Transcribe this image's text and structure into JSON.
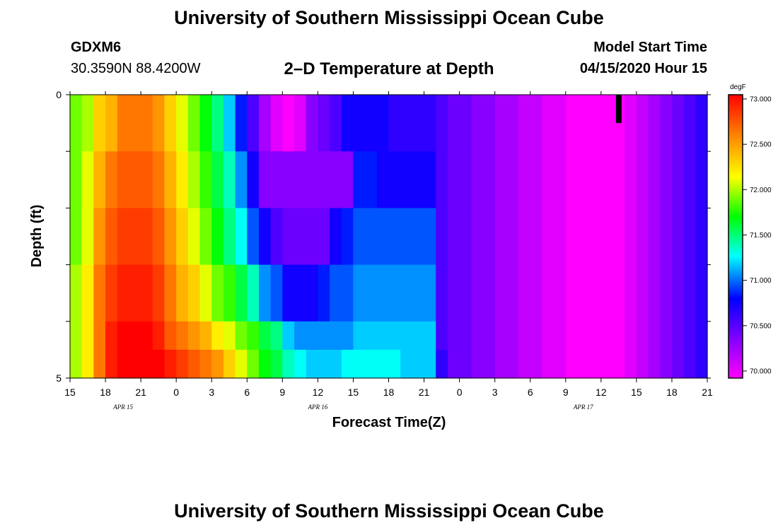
{
  "header": {
    "title": "University of Southern Mississippi Ocean Cube",
    "station_id": "GDXM6",
    "coordinates": "30.3590N 88.4200W",
    "plot_title": "2–D Temperature at Depth",
    "model_start_label": "Model Start Time",
    "model_start_time": "04/15/2020 Hour 15"
  },
  "footer": {
    "title": "University of Southern Mississippi Ocean Cube"
  },
  "chart_data": {
    "type": "heatmap",
    "xlabel": "Forecast Time(Z)",
    "ylabel": "Depth (ft)",
    "x_ticks": [
      "15",
      "18",
      "21",
      "0",
      "3",
      "6",
      "9",
      "12",
      "15",
      "18",
      "21",
      "0",
      "3",
      "6",
      "9",
      "12",
      "15",
      "18",
      "21"
    ],
    "x_range_hours": [
      0,
      54
    ],
    "date_labels": [
      {
        "text": "APR 15",
        "hour": 4.5
      },
      {
        "text": "APR 16",
        "hour": 21
      },
      {
        "text": "APR 17",
        "hour": 43.5
      }
    ],
    "y_ticks": [
      "0",
      "5"
    ],
    "y_range": [
      0,
      5
    ],
    "colorbar": {
      "unit": "degF",
      "ticks": [
        "73.000",
        "72.500",
        "72.000",
        "71.500",
        "71.000",
        "70.500",
        "70.000"
      ],
      "range": [
        70.0,
        73.0
      ],
      "colors": [
        "#ff00ff",
        "#8000ff",
        "#0000ff",
        "#00ffff",
        "#00ff00",
        "#ffff00",
        "#ff8000",
        "#ff0000"
      ]
    },
    "depth_layers": [
      {
        "depth_top": 0,
        "depth_bottom": 1,
        "temps": [
          71.9,
          72.0,
          72.3,
          72.4,
          72.6,
          72.6,
          72.6,
          72.5,
          72.3,
          72.1,
          71.9,
          71.7,
          71.5,
          71.2,
          70.9,
          70.6,
          70.3,
          70.1,
          70.0,
          70.1,
          70.4,
          70.5,
          70.6,
          70.8,
          70.8,
          70.8,
          70.8,
          70.7,
          70.7,
          70.7,
          70.7,
          70.6,
          70.5,
          70.5,
          70.4,
          70.4,
          70.3,
          70.3,
          70.2,
          70.2,
          70.1,
          70.1,
          70.0,
          70.0,
          70.0,
          70.0,
          70.0,
          70.1,
          70.2,
          70.3,
          70.4,
          70.5,
          70.6,
          70.7
        ]
      },
      {
        "depth_top": 1,
        "depth_bottom": 2,
        "temps": [
          71.9,
          72.1,
          72.4,
          72.6,
          72.7,
          72.7,
          72.7,
          72.6,
          72.4,
          72.2,
          72.0,
          71.8,
          71.6,
          71.4,
          71.1,
          70.8,
          70.4,
          70.4,
          70.4,
          70.4,
          70.4,
          70.4,
          70.4,
          70.4,
          70.9,
          70.9,
          70.8,
          70.8,
          70.8,
          70.8,
          70.8,
          70.6,
          70.5,
          70.5,
          70.4,
          70.4,
          70.3,
          70.3,
          70.2,
          70.2,
          70.1,
          70.1,
          70.0,
          70.0,
          70.0,
          70.0,
          70.0,
          70.1,
          70.2,
          70.3,
          70.4,
          70.5,
          70.6,
          70.7
        ]
      },
      {
        "depth_top": 2,
        "depth_bottom": 3,
        "temps": [
          71.9,
          72.1,
          72.5,
          72.7,
          72.8,
          72.8,
          72.8,
          72.7,
          72.5,
          72.3,
          72.1,
          71.9,
          71.7,
          71.5,
          71.3,
          71.0,
          70.8,
          70.6,
          70.5,
          70.5,
          70.5,
          70.5,
          70.8,
          70.9,
          71.0,
          71.0,
          71.0,
          71.0,
          71.0,
          71.0,
          71.0,
          70.6,
          70.5,
          70.5,
          70.4,
          70.4,
          70.3,
          70.3,
          70.2,
          70.2,
          70.1,
          70.1,
          70.0,
          70.0,
          70.0,
          70.0,
          70.0,
          70.1,
          70.2,
          70.3,
          70.4,
          70.5,
          70.6,
          70.7
        ]
      },
      {
        "depth_top": 3,
        "depth_bottom": 4,
        "temps": [
          72.0,
          72.2,
          72.6,
          72.8,
          72.9,
          72.9,
          72.9,
          72.8,
          72.6,
          72.4,
          72.3,
          72.1,
          71.9,
          71.8,
          71.6,
          71.4,
          71.1,
          71.0,
          70.8,
          70.8,
          70.8,
          70.9,
          71.0,
          71.0,
          71.1,
          71.1,
          71.1,
          71.1,
          71.1,
          71.1,
          71.1,
          70.6,
          70.5,
          70.5,
          70.4,
          70.4,
          70.3,
          70.3,
          70.2,
          70.2,
          70.1,
          70.1,
          70.0,
          70.0,
          70.0,
          70.0,
          70.0,
          70.1,
          70.2,
          70.3,
          70.4,
          70.5,
          70.6,
          70.7
        ]
      },
      {
        "depth_top": 4,
        "depth_bottom": 4.5,
        "temps": [
          72.0,
          72.2,
          72.6,
          72.9,
          73.0,
          73.0,
          73.0,
          72.9,
          72.7,
          72.6,
          72.5,
          72.4,
          72.2,
          72.1,
          71.9,
          71.8,
          71.6,
          71.5,
          71.2,
          71.1,
          71.1,
          71.1,
          71.1,
          71.1,
          71.2,
          71.2,
          71.2,
          71.2,
          71.2,
          71.2,
          71.2,
          70.6,
          70.5,
          70.5,
          70.4,
          70.4,
          70.3,
          70.3,
          70.2,
          70.2,
          70.1,
          70.1,
          70.0,
          70.0,
          70.0,
          70.0,
          70.0,
          70.1,
          70.2,
          70.3,
          70.4,
          70.5,
          70.6,
          70.7
        ]
      },
      {
        "depth_top": 4.5,
        "depth_bottom": 5,
        "temps": [
          72.0,
          72.2,
          72.6,
          72.9,
          73.0,
          73.0,
          73.0,
          73.0,
          72.9,
          72.8,
          72.7,
          72.6,
          72.5,
          72.3,
          72.1,
          71.9,
          71.7,
          71.6,
          71.4,
          71.3,
          71.2,
          71.2,
          71.2,
          71.3,
          71.3,
          71.3,
          71.3,
          71.3,
          71.2,
          71.2,
          71.2,
          70.7,
          70.5,
          70.5,
          70.4,
          70.4,
          70.3,
          70.3,
          70.2,
          70.2,
          70.1,
          70.1,
          70.0,
          70.0,
          70.0,
          70.0,
          70.0,
          70.1,
          70.2,
          70.3,
          70.4,
          70.5,
          70.6,
          70.7
        ]
      }
    ],
    "marker": {
      "hour": 46.5,
      "depth_top": 0,
      "depth_bottom": 0.5,
      "color": "#000000"
    }
  }
}
